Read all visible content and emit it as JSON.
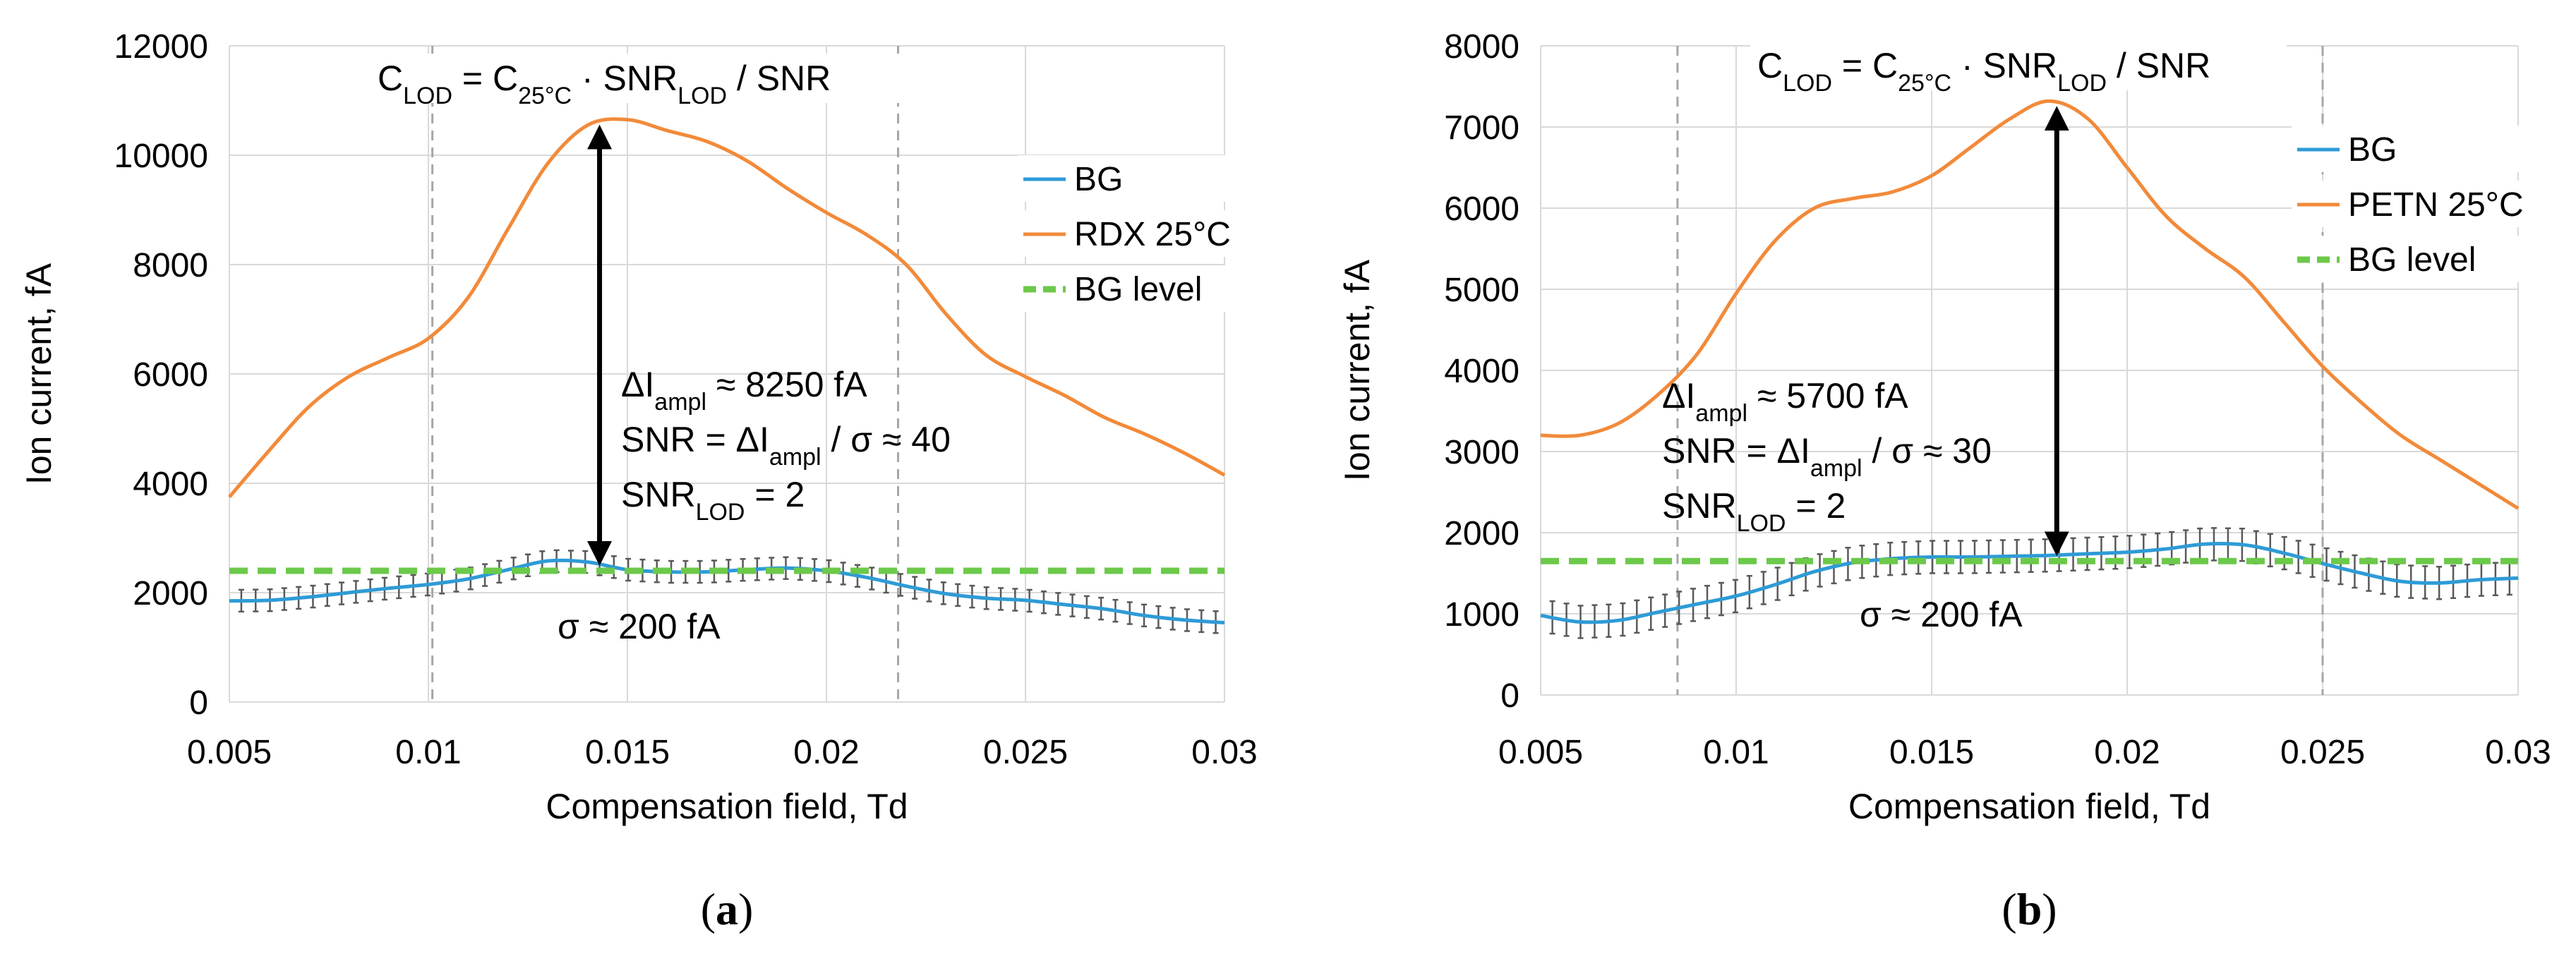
{
  "colors": {
    "bg_line": "#2E9BD6",
    "analyte_line": "#F28A3A",
    "bg_level": "#6CC94A",
    "grid": "#D9D9D9",
    "vline": "#A6A6A6",
    "errorbar": "#595959"
  },
  "chart_data": [
    {
      "panel": "a",
      "type": "line",
      "panel_label": "(a)",
      "panel_label_letter": "a",
      "xlabel": "Compensation field, Td",
      "ylabel": "Ion current, fA",
      "xlim": [
        0.005,
        0.03
      ],
      "ylim": [
        0,
        12000
      ],
      "x_ticks": [
        "0.005",
        "0.01",
        "0.015",
        "0.02",
        "0.025",
        "0.03"
      ],
      "y_ticks": [
        "0",
        "2000",
        "4000",
        "6000",
        "8000",
        "10000",
        "12000"
      ],
      "vlines": [
        0.0101,
        0.0218
      ],
      "series": [
        {
          "name": "BG",
          "x": [
            0.005,
            0.006,
            0.007,
            0.008,
            0.009,
            0.01,
            0.011,
            0.012,
            0.013,
            0.014,
            0.015,
            0.016,
            0.017,
            0.018,
            0.019,
            0.02,
            0.021,
            0.022,
            0.023,
            0.024,
            0.025,
            0.026,
            0.027,
            0.028,
            0.029,
            0.03
          ],
          "y": [
            1850,
            1860,
            1920,
            2000,
            2080,
            2150,
            2250,
            2420,
            2580,
            2560,
            2420,
            2380,
            2380,
            2420,
            2450,
            2400,
            2280,
            2120,
            1980,
            1900,
            1860,
            1780,
            1700,
            1580,
            1500,
            1450
          ]
        },
        {
          "name": "RDX  25°C",
          "x": [
            0.005,
            0.006,
            0.007,
            0.008,
            0.009,
            0.01,
            0.011,
            0.012,
            0.013,
            0.014,
            0.015,
            0.016,
            0.017,
            0.018,
            0.019,
            0.02,
            0.021,
            0.022,
            0.023,
            0.024,
            0.025,
            0.026,
            0.027,
            0.028,
            0.029,
            0.03
          ],
          "y": [
            3750,
            4600,
            5400,
            5950,
            6300,
            6650,
            7400,
            8650,
            9850,
            10550,
            10650,
            10450,
            10250,
            9900,
            9400,
            8950,
            8550,
            8000,
            7100,
            6350,
            5950,
            5600,
            5200,
            4900,
            4550,
            4150
          ]
        },
        {
          "name": "BG level",
          "x": [
            0.005,
            0.03
          ],
          "y": [
            2400,
            2400
          ],
          "style": "dashed"
        }
      ],
      "error_sigma": 200,
      "arrow": {
        "x": 0.0143,
        "y_from": 2400,
        "y_to": 10650
      },
      "formula": {
        "pre": "C",
        "pre_sub": "LOD",
        "mid": " = C",
        "mid_sub": "25°C",
        "dot": " · SNR",
        "dot_sub": "LOD",
        "post": " / SNR"
      },
      "annotation_lines": [
        {
          "pre": "ΔI",
          "sub": "ampl",
          "post": " ≈ 8250 fA"
        },
        {
          "pre": "SNR = ΔI",
          "sub": "ampl",
          "post": " / σ ≈ 40"
        },
        {
          "pre": "SNR",
          "sub": "LOD",
          "post": " = 2"
        }
      ],
      "sigma_label": "σ ≈ 200 fA"
    },
    {
      "panel": "b",
      "type": "line",
      "panel_label": "(b)",
      "panel_label_letter": "b",
      "xlabel": "Compensation field, Td",
      "ylabel": "Ion current, fA",
      "xlim": [
        0.005,
        0.03
      ],
      "ylim": [
        0,
        8000
      ],
      "x_ticks": [
        "0.005",
        "0.01",
        "0.015",
        "0.02",
        "0.025",
        "0.03"
      ],
      "y_ticks": [
        "0",
        "1000",
        "2000",
        "3000",
        "4000",
        "5000",
        "6000",
        "7000",
        "8000"
      ],
      "vlines": [
        0.0085,
        0.025
      ],
      "series": [
        {
          "name": "BG",
          "x": [
            0.005,
            0.006,
            0.007,
            0.008,
            0.009,
            0.01,
            0.011,
            0.012,
            0.013,
            0.014,
            0.015,
            0.016,
            0.017,
            0.018,
            0.019,
            0.02,
            0.021,
            0.022,
            0.023,
            0.024,
            0.025,
            0.026,
            0.027,
            0.028,
            0.029,
            0.03
          ],
          "y": [
            980,
            900,
            920,
            1020,
            1120,
            1220,
            1360,
            1520,
            1630,
            1680,
            1700,
            1700,
            1710,
            1720,
            1740,
            1760,
            1800,
            1860,
            1850,
            1750,
            1620,
            1500,
            1400,
            1380,
            1420,
            1440
          ]
        },
        {
          "name": "PETN  25°C",
          "x": [
            0.005,
            0.006,
            0.007,
            0.008,
            0.009,
            0.01,
            0.011,
            0.012,
            0.013,
            0.014,
            0.015,
            0.016,
            0.017,
            0.018,
            0.019,
            0.02,
            0.021,
            0.022,
            0.023,
            0.024,
            0.025,
            0.026,
            0.027,
            0.028,
            0.029,
            0.03
          ],
          "y": [
            3200,
            3200,
            3350,
            3700,
            4200,
            4950,
            5600,
            6000,
            6120,
            6200,
            6400,
            6750,
            7100,
            7320,
            7100,
            6500,
            5900,
            5500,
            5150,
            4600,
            4050,
            3600,
            3200,
            2900,
            2600,
            2300
          ]
        },
        {
          "name": "BG level",
          "x": [
            0.005,
            0.03
          ],
          "y": [
            1650,
            1650
          ],
          "style": "dashed"
        }
      ],
      "error_sigma": 200,
      "arrow": {
        "x": 0.0182,
        "y_from": 1650,
        "y_to": 7320
      },
      "formula": {
        "pre": "C",
        "pre_sub": "LOD",
        "mid": " = C",
        "mid_sub": "25°C",
        "dot": " · SNR",
        "dot_sub": "LOD",
        "post": " / SNR"
      },
      "annotation_lines": [
        {
          "pre": "ΔI",
          "sub": "ampl",
          "post": " ≈ 5700 fA"
        },
        {
          "pre": "SNR = ΔI",
          "sub": "ampl",
          "post": " / σ ≈ 30"
        },
        {
          "pre": "SNR",
          "sub": "LOD",
          "post": " = 2"
        }
      ],
      "sigma_label": "σ ≈ 200 fA"
    }
  ]
}
